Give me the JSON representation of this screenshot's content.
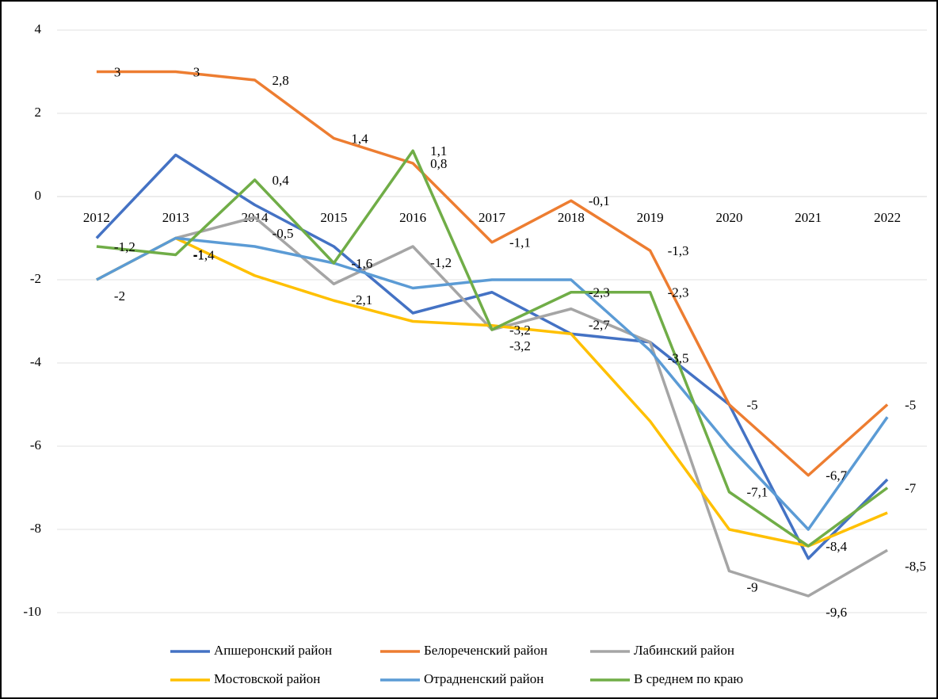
{
  "chart_data": {
    "type": "line",
    "categories": [
      "2012",
      "2013",
      "2014",
      "2015",
      "2016",
      "2017",
      "2018",
      "2019",
      "2020",
      "2021",
      "2022"
    ],
    "ylim": [
      -10,
      4
    ],
    "yticks": [
      -10,
      -8,
      -6,
      -4,
      -2,
      0,
      2,
      4
    ],
    "grid": true,
    "series": [
      {
        "name": "Апшеронский район",
        "color": "#4472c4",
        "values": [
          -1,
          1,
          -0.2,
          -1.2,
          -2.8,
          -2.3,
          -3.3,
          -3.5,
          -5,
          -8.7,
          -6.8
        ]
      },
      {
        "name": "Белореченский район",
        "color": "#ed7d31",
        "values": [
          3,
          3,
          2.8,
          1.4,
          0.8,
          -1.1,
          -0.1,
          -1.3,
          -5,
          -6.7,
          -5
        ],
        "value_labels": [
          "3",
          "3",
          "2,8",
          "1,4",
          "0,8",
          "-1,1",
          "-0,1",
          "-1,3",
          "-5",
          "-6,7",
          "-5"
        ]
      },
      {
        "name": "Лабинский район",
        "color": "#a5a5a5",
        "values": [
          -2,
          -1,
          -0.5,
          -2.1,
          -1.2,
          -3.2,
          -2.7,
          -3.5,
          -9,
          -9.6,
          -8.5
        ],
        "value_labels": [
          "-2",
          "-1",
          "-0,5",
          "-2,1",
          "-1,2",
          "-3,2",
          "-2,7",
          "-3,5",
          "-9",
          "-9,6",
          "-8,5"
        ]
      },
      {
        "name": "Мостовской район",
        "color": "#ffc000",
        "values": [
          -2,
          -1,
          -1.9,
          -2.5,
          -3,
          -3.1,
          -3.3,
          -5.4,
          -8,
          -8.4,
          -7.6
        ]
      },
      {
        "name": "Отрадненский район",
        "color": "#5b9bd5",
        "values": [
          -2,
          -1,
          -1.2,
          -1.6,
          -2.2,
          -2,
          -2,
          -3.7,
          -6,
          -8,
          -5.3
        ]
      },
      {
        "name": "В среднем по краю",
        "color": "#70ad47",
        "values": [
          -1.2,
          -1.4,
          0.4,
          -1.6,
          1.1,
          -3.2,
          -2.3,
          -2.3,
          -7.1,
          -8.4,
          -7
        ],
        "value_labels": [
          "-1,2",
          "-1,4",
          "0,4",
          "-1,6",
          "1,1",
          "-3,2",
          "-2,3",
          "-2,3",
          "-7,1",
          "-8,4",
          "-7"
        ]
      }
    ]
  }
}
